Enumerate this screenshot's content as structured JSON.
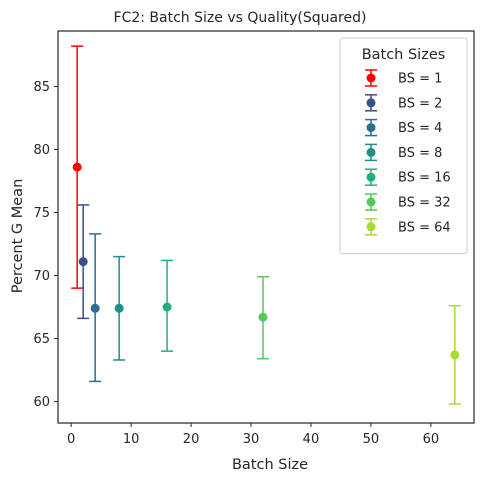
{
  "chart_data": {
    "type": "scatter",
    "title": "FC2: Batch Size vs Quality(Squared)",
    "xlabel": "Batch Size",
    "ylabel": "Percent G Mean",
    "xlim": [
      -2.2,
      67.2
    ],
    "ylim": [
      58.3,
      89.4
    ],
    "xticks": [
      0,
      10,
      20,
      30,
      40,
      50,
      60
    ],
    "yticks": [
      60,
      65,
      70,
      75,
      80,
      85
    ],
    "grid": false,
    "legend": {
      "title": "Batch Sizes",
      "placement": "top-right"
    },
    "series": [
      {
        "name": "BS = 1",
        "x": 1,
        "y": 78.6,
        "y_low": 69.0,
        "y_high": 88.2,
        "color": "#ff0000"
      },
      {
        "name": "BS = 2",
        "x": 2,
        "y": 71.1,
        "y_low": 66.6,
        "y_high": 75.6,
        "color": "#3b4f8a"
      },
      {
        "name": "BS = 4",
        "x": 4,
        "y": 67.4,
        "y_low": 61.6,
        "y_high": 73.3,
        "color": "#2c6e8e"
      },
      {
        "name": "BS = 8",
        "x": 8,
        "y": 67.4,
        "y_low": 63.3,
        "y_high": 71.5,
        "color": "#218e8c"
      },
      {
        "name": "BS = 16",
        "x": 16,
        "y": 67.5,
        "y_low": 64.0,
        "y_high": 71.2,
        "color": "#22b07a"
      },
      {
        "name": "BS = 32",
        "x": 32,
        "y": 66.7,
        "y_low": 63.4,
        "y_high": 69.9,
        "color": "#55c85a"
      },
      {
        "name": "BS = 64",
        "x": 64,
        "y": 63.7,
        "y_low": 59.8,
        "y_high": 67.6,
        "color": "#a8db34"
      }
    ]
  }
}
